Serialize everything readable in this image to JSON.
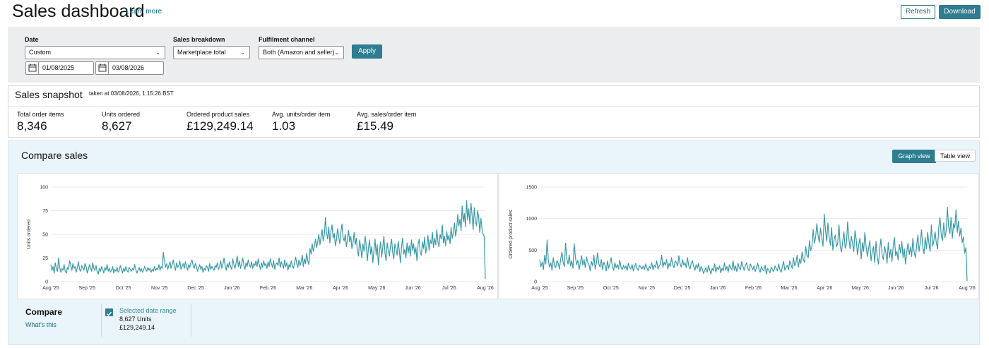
{
  "header": {
    "title": "Sales dashboard",
    "learn_more": "Learn more",
    "refresh": "Refresh",
    "download": "Download"
  },
  "filters": {
    "date_label": "Date",
    "date_value": "Custom",
    "start_date": "01/08/2025",
    "end_date": "03/08/2026",
    "breakdown_label": "Sales breakdown",
    "breakdown_value": "Marketplace total",
    "channel_label": "Fulfilment channel",
    "channel_value": "Both (Amazon and seller)",
    "apply": "Apply"
  },
  "snapshot": {
    "title": "Sales snapshot",
    "taken_at": "taken at 03/08/2026, 1:15:26 BST",
    "metrics": [
      {
        "label": "Total order items",
        "value": "8,346"
      },
      {
        "label": "Units ordered",
        "value": "8,627"
      },
      {
        "label": "Ordered product sales",
        "value": "£129,249.14"
      },
      {
        "label": "Avg. units/order item",
        "value": "1.03"
      },
      {
        "label": "Avg. sales/order item",
        "value": "£15.49"
      }
    ]
  },
  "compare": {
    "title": "Compare sales",
    "graph_view": "Graph view",
    "table_view": "Table view",
    "compare_label": "Compare",
    "whats_this": "What's this",
    "legend": {
      "range": "Selected date range",
      "units": "8,627 Units",
      "sales": "£129,249.14",
      "color": "#3a9aa6"
    }
  },
  "chart_data": [
    {
      "type": "line",
      "ylabel": "Units ordered",
      "ylim": [
        0,
        100
      ],
      "yticks": [
        "100",
        "75",
        "50",
        "25",
        "0"
      ],
      "x_tick_labels": [
        "Aug '25",
        "Sep '25",
        "Oct '25",
        "Nov '25",
        "Dec '25",
        "Jan '26",
        "Feb '26",
        "Mar '26",
        "Apr '26",
        "May '26",
        "Jun '26",
        "Jul '26",
        "Aug '26"
      ],
      "grid": true,
      "series": [
        {
          "color": "#3a9aa6",
          "values": [
            18,
            12,
            16,
            9,
            20,
            14,
            11,
            25,
            15,
            10,
            14,
            12,
            18,
            11,
            9,
            15,
            13,
            22,
            17,
            12,
            19,
            14,
            16,
            10,
            15,
            21,
            13,
            11,
            17,
            14,
            12,
            19,
            16,
            9,
            13,
            18,
            15,
            11,
            20,
            14,
            12,
            17,
            10,
            8,
            14,
            11,
            16,
            13,
            9,
            15,
            12,
            18,
            11,
            14,
            10,
            12,
            16,
            9,
            13,
            11,
            15,
            10,
            12,
            17,
            13,
            9,
            14,
            11,
            16,
            12,
            10,
            15,
            13,
            11,
            14,
            12,
            18,
            13,
            9,
            12,
            15,
            11,
            14,
            10,
            12,
            16,
            13,
            11,
            15,
            12,
            14,
            10,
            13,
            11,
            16,
            12,
            14,
            13,
            18,
            12,
            16,
            14,
            31,
            22,
            15,
            19,
            13,
            17,
            21,
            14,
            18,
            23,
            16,
            12,
            20,
            15,
            17,
            22,
            13,
            16,
            19,
            14,
            21,
            16,
            12,
            18,
            15,
            20,
            23,
            17,
            14,
            19,
            16,
            11,
            15,
            18,
            13,
            16,
            10,
            14,
            12,
            17,
            15,
            11,
            19,
            13,
            16,
            14,
            12,
            17,
            15,
            20,
            13,
            16,
            22,
            14,
            18,
            25,
            17,
            12,
            19,
            15,
            21,
            16,
            13,
            24,
            18,
            14,
            20,
            27,
            16,
            22,
            14,
            19,
            25,
            17,
            13,
            20,
            16,
            23,
            18,
            15,
            21,
            14,
            19,
            17,
            22,
            16,
            24,
            18,
            13,
            20,
            15,
            22,
            17,
            19,
            14,
            21,
            16,
            24,
            19,
            15,
            22,
            13,
            18,
            20,
            17,
            25,
            15,
            21,
            18,
            14,
            23,
            16,
            20,
            12,
            18,
            15,
            22,
            17,
            14,
            20,
            26,
            19,
            15,
            23,
            17,
            21,
            28,
            16,
            24,
            19,
            30,
            22,
            18,
            35,
            29,
            40,
            32,
            38,
            45,
            36,
            42,
            50,
            39,
            47,
            55,
            43,
            49,
            68,
            52,
            45,
            58,
            41,
            53,
            60,
            46,
            51,
            38,
            44,
            56,
            48,
            40,
            52,
            61,
            47,
            43,
            50,
            37,
            45,
            54,
            42,
            48,
            35,
            41,
            52,
            39,
            46,
            33,
            27,
            44,
            36,
            25,
            40,
            32,
            48,
            38,
            22,
            35,
            44,
            29,
            37,
            20,
            33,
            45,
            28,
            39,
            18,
            31,
            42,
            26,
            36,
            48,
            30,
            22,
            41,
            34,
            27,
            38,
            45,
            31,
            24,
            40,
            35,
            28,
            43,
            33,
            20,
            37,
            46,
            29,
            34,
            25,
            41,
            30,
            38,
            27,
            44,
            33,
            40,
            29,
            36,
            22,
            39,
            45,
            31,
            28,
            42,
            35,
            47,
            30,
            38,
            49,
            33,
            44,
            40,
            52,
            36,
            46,
            39,
            55,
            42,
            37,
            50,
            45,
            60,
            41,
            48,
            38,
            53,
            44,
            49,
            40,
            57,
            46,
            52,
            62,
            48,
            55,
            71,
            59,
            66,
            54,
            80,
            63,
            72,
            58,
            86,
            65,
            77,
            61,
            83,
            70,
            55,
            78,
            64,
            59,
            75,
            68,
            52,
            67,
            56,
            50,
            48,
            3
          ]
        }
      ]
    },
    {
      "type": "line",
      "ylabel": "Ordered product sales",
      "ylim": [
        0,
        1500
      ],
      "yticks": [
        "1500",
        "1000",
        "500",
        "0"
      ],
      "x_tick_labels": [
        "Aug '25",
        "Sep '25",
        "Oct '25",
        "Nov '25",
        "Dec '25",
        "Jan '26",
        "Feb '26",
        "Mar '26",
        "Apr '26",
        "May '26",
        "Jun '26",
        "Jul '26",
        "Aug '26"
      ],
      "grid": true,
      "series": [
        {
          "color": "#3a9aa6",
          "values": [
            350,
            240,
            310,
            190,
            420,
            280,
            660,
            340,
            230,
            300,
            180,
            380,
            260,
            220,
            330,
            290,
            200,
            350,
            470,
            310,
            240,
            610,
            360,
            280,
            420,
            250,
            330,
            210,
            600,
            380,
            270,
            340,
            190,
            300,
            410,
            260,
            350,
            220,
            390,
            300,
            270,
            170,
            320,
            250,
            420,
            200,
            300,
            460,
            280,
            230,
            350,
            190,
            310,
            260,
            170,
            330,
            210,
            290,
            380,
            240,
            180,
            300,
            220,
            270,
            200,
            340,
            230,
            190,
            260,
            210,
            250,
            180,
            290,
            230,
            200,
            270,
            170,
            240,
            290,
            210,
            180,
            260,
            230,
            200,
            250,
            190,
            280,
            220,
            170,
            240,
            210,
            300,
            190,
            260,
            230,
            330,
            200,
            250,
            280,
            420,
            230,
            310,
            260,
            350,
            200,
            290,
            240,
            380,
            270,
            220,
            330,
            300,
            250,
            410,
            280,
            230,
            350,
            260,
            300,
            220,
            380,
            250,
            200,
            290,
            330,
            240,
            180,
            270,
            210,
            290,
            160,
            240,
            200,
            130,
            180,
            220,
            150,
            260,
            190,
            120,
            210,
            170,
            280,
            150,
            230,
            190,
            250,
            140,
            210,
            170,
            300,
            180,
            240,
            150,
            270,
            220,
            190,
            330,
            180,
            250,
            160,
            290,
            220,
            190,
            320,
            240,
            180,
            260,
            300,
            210,
            170,
            280,
            230,
            190,
            250,
            160,
            220,
            290,
            200,
            150,
            240,
            190,
            170,
            260,
            120,
            210,
            180,
            140,
            230,
            190,
            160,
            250,
            210,
            170,
            280,
            190,
            150,
            240,
            320,
            180,
            220,
            260,
            190,
            330,
            270,
            210,
            380,
            250,
            300,
            420,
            230,
            360,
            290,
            470,
            350,
            310,
            560,
            420,
            380,
            650,
            490,
            560,
            830,
            610,
            700,
            920,
            740,
            620,
            850,
            690,
            560,
            1070,
            820,
            640,
            930,
            700,
            580,
            860,
            500,
            660,
            740,
            550,
            620,
            900,
            560,
            470,
            640,
            790,
            530,
            590,
            950,
            680,
            520,
            720,
            600,
            480,
            810,
            660,
            430,
            580,
            690,
            360,
            620,
            480,
            780,
            560,
            400,
            520,
            650,
            330,
            470,
            560,
            300,
            640,
            390,
            280,
            510,
            680,
            420,
            350,
            560,
            470,
            290,
            620,
            380,
            510,
            320,
            560,
            700,
            410,
            480,
            340,
            590,
            450,
            640,
            380,
            520,
            280,
            470,
            610,
            430,
            550,
            400,
            690,
            470,
            380,
            560,
            740,
            480,
            620,
            820,
            560,
            440,
            700,
            520,
            780,
            600,
            480,
            900,
            560,
            640,
            790,
            620,
            520,
            860,
            1020,
            740,
            650,
            930,
            700,
            810,
            1180,
            880,
            760,
            1020,
            690,
            920,
            850,
            1140,
            780,
            960,
            720,
            850,
            620,
            710,
            450,
            540,
            10
          ]
        }
      ]
    }
  ]
}
